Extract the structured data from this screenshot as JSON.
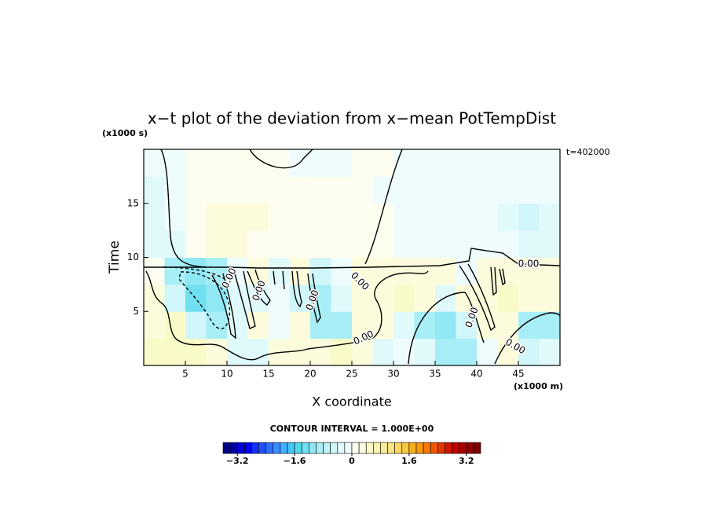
{
  "chart_data": {
    "type": "contour",
    "title": "x−t plot of the deviation from x−mean PotTempDist",
    "y_unit": "(x1000 s)",
    "x_unit": "(x1000 m)",
    "annotation": "t=402000",
    "ylabel": "Time",
    "xlabel": "X coordinate",
    "contour_interval": "CONTOUR INTERVAL = 1.000E+00",
    "xlim": [
      0,
      50
    ],
    "ylim": [
      0,
      20
    ],
    "xticks": [
      5,
      10,
      15,
      20,
      25,
      30,
      35,
      40,
      45
    ],
    "yticks": [
      5,
      10,
      15
    ],
    "x": [
      1.25,
      3.75,
      6.25,
      8.75,
      11.25,
      13.75,
      16.25,
      18.75,
      21.25,
      23.75,
      26.25,
      28.75,
      31.25,
      33.75,
      36.25,
      38.75,
      41.25,
      43.75,
      46.25,
      48.75
    ],
    "y": [
      1.25,
      3.75,
      6.25,
      8.75,
      11.25,
      13.75,
      16.25,
      18.75
    ],
    "z": [
      [
        0.4,
        0.5,
        0.4,
        0.3,
        -0.4,
        -0.3,
        0.2,
        0.3,
        0.2,
        0.4,
        0.3,
        -0.3,
        -0.2,
        -0.4,
        -1.0,
        -0.8,
        -0.2,
        0.3,
        -0.6,
        -0.4
      ],
      [
        0.3,
        0.4,
        -0.6,
        -1.0,
        -0.4,
        0.2,
        -0.2,
        0.3,
        -0.8,
        -1.0,
        0.2,
        0.3,
        -0.3,
        -0.8,
        -1.2,
        -0.6,
        0.2,
        0.3,
        -1.0,
        -0.8
      ],
      [
        0.2,
        -0.6,
        -1.4,
        -1.2,
        -0.3,
        -0.4,
        -0.2,
        -0.5,
        -0.8,
        -0.4,
        0.3,
        0.3,
        0.4,
        0.3,
        -0.3,
        0.2,
        0.3,
        0.4,
        0.2,
        0.2
      ],
      [
        0.1,
        -0.8,
        -1.2,
        -0.8,
        -0.2,
        0.2,
        -0.3,
        0.2,
        -0.6,
        -0.2,
        0.3,
        0.2,
        0.3,
        0.3,
        0.2,
        -0.2,
        0.3,
        0.2,
        0.2,
        0.2
      ],
      [
        -0.4,
        -0.3,
        0.1,
        0.2,
        0.2,
        0.1,
        0.1,
        0.1,
        0.1,
        0.1,
        0.1,
        0.1,
        -0.2,
        -0.2,
        -0.2,
        -0.2,
        -0.2,
        -0.2,
        -0.4,
        -0.3
      ],
      [
        -0.4,
        -0.2,
        0.1,
        0.2,
        0.3,
        0.2,
        0.1,
        0.1,
        0.1,
        0.1,
        0.1,
        0.1,
        -0.2,
        -0.2,
        -0.2,
        -0.2,
        -0.2,
        -0.3,
        -0.6,
        -0.4
      ],
      [
        -0.3,
        -0.2,
        0.1,
        0.1,
        0.1,
        0.1,
        0.1,
        0.1,
        0.1,
        0.1,
        0.1,
        -0.2,
        -0.2,
        -0.2,
        -0.2,
        -0.2,
        -0.2,
        -0.2,
        -0.2,
        -0.2
      ],
      [
        -0.2,
        -0.2,
        0.1,
        0.1,
        0.1,
        0.1,
        0.1,
        -0.2,
        -0.2,
        -0.2,
        0.1,
        0.1,
        -0.2,
        -0.2,
        -0.2,
        -0.2,
        -0.2,
        -0.2,
        -0.2,
        -0.2
      ]
    ],
    "clim": [
      -3.6,
      3.6
    ],
    "colors": [
      "#000080",
      "#0000a8",
      "#0000d0",
      "#0000f0",
      "#1030ff",
      "#2050ff",
      "#3070ff",
      "#3890ff",
      "#40b0ff",
      "#48c8f8",
      "#50d8f0",
      "#70e0f0",
      "#90e8f4",
      "#a8eef6",
      "#bef2f8",
      "#d0f6fa",
      "#e0fafc",
      "#eefcfd",
      "#fefef0",
      "#fcfcdc",
      "#fafac8",
      "#f8f4b0",
      "#f8ee98",
      "#f8e480",
      "#f8d860",
      "#f8c840",
      "#f8b020",
      "#f89810",
      "#f87800",
      "#f05800",
      "#e03800",
      "#d01800",
      "#c00000",
      "#a80000",
      "#900000",
      "#780000"
    ],
    "cticks": [
      {
        "value": -3.2,
        "label": "−3.2"
      },
      {
        "value": -1.6,
        "label": "−1.6"
      },
      0,
      1.6,
      3.2
    ],
    "contour_labels": [
      {
        "value": 0,
        "label": "0.00"
      },
      {
        "value": 0,
        "label": "0.00"
      },
      {
        "value": 0,
        "label": "0.00"
      },
      {
        "value": 0,
        "label": "0.00"
      },
      {
        "value": 0,
        "label": "0.00"
      },
      {
        "value": 0,
        "label": "0.00"
      },
      {
        "value": 0,
        "label": "0.00"
      },
      {
        "value": 0,
        "label": "0.00"
      }
    ]
  }
}
